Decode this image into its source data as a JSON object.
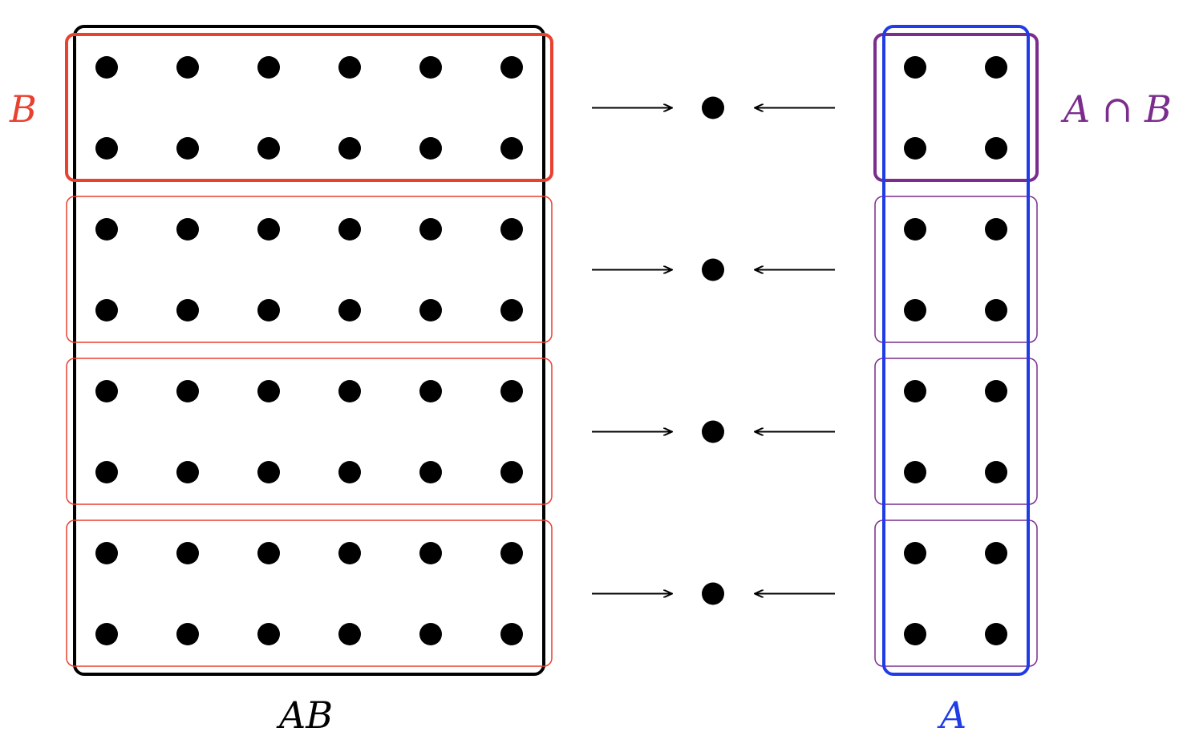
{
  "labels": {
    "b": "B",
    "ab": "AB",
    "a": "A",
    "a_cap_b": "A ∩ B"
  },
  "structure": {
    "ab_columns": 6,
    "a_columns": 2,
    "blocks": 4,
    "rows_per_block": 2
  },
  "colors": {
    "black": "#000000",
    "red": "#e8412f",
    "blue": "#1f3ce8",
    "purple": "#7b2d8e"
  }
}
